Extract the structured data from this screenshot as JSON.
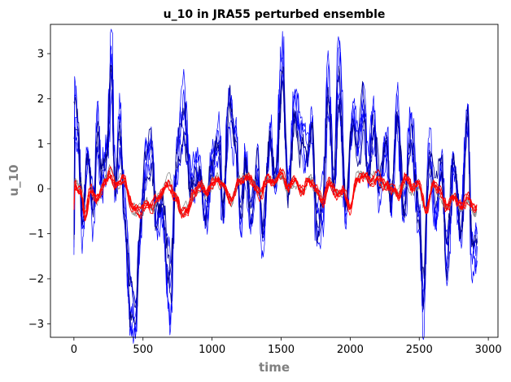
{
  "chart_data": {
    "type": "line",
    "title": "u_10 in JRA55 perturbed ensemble",
    "xlabel": "time",
    "ylabel": "u_10",
    "xlim": [
      -170,
      3070
    ],
    "ylim": [
      -3.3,
      3.65
    ],
    "xticks": [
      0,
      500,
      1000,
      1500,
      2000,
      2500,
      3000
    ],
    "yticks": [
      3,
      2,
      1,
      0,
      -1,
      -2,
      -3
    ],
    "grid": false,
    "n_points": 2920,
    "series_groups": [
      {
        "group": "blue-ensemble",
        "color": "#0000ff",
        "members": 5,
        "anchors": [
          [
            0,
            1.9
          ],
          [
            30,
            1.3
          ],
          [
            60,
            -0.8
          ],
          [
            100,
            0.6
          ],
          [
            140,
            -0.4
          ],
          [
            170,
            1.5
          ],
          [
            200,
            0.3
          ],
          [
            240,
            1.0
          ],
          [
            270,
            3.1
          ],
          [
            300,
            0.0
          ],
          [
            330,
            1.4
          ],
          [
            370,
            -0.5
          ],
          [
            410,
            -2.5
          ],
          [
            450,
            -2.8
          ],
          [
            480,
            -1.0
          ],
          [
            520,
            0.5
          ],
          [
            560,
            0.9
          ],
          [
            600,
            -0.9
          ],
          [
            640,
            -0.4
          ],
          [
            700,
            -2.5
          ],
          [
            740,
            0.5
          ],
          [
            800,
            1.7
          ],
          [
            840,
            0.2
          ],
          [
            900,
            0.5
          ],
          [
            960,
            -0.6
          ],
          [
            1000,
            0.6
          ],
          [
            1050,
            1.3
          ],
          [
            1080,
            -0.6
          ],
          [
            1120,
            2.0
          ],
          [
            1170,
            1.0
          ],
          [
            1210,
            -0.6
          ],
          [
            1240,
            0.8
          ],
          [
            1280,
            -0.6
          ],
          [
            1330,
            0.6
          ],
          [
            1370,
            -1.2
          ],
          [
            1420,
            1.2
          ],
          [
            1460,
            0.1
          ],
          [
            1510,
            2.7
          ],
          [
            1550,
            0.0
          ],
          [
            1600,
            2.0
          ],
          [
            1640,
            1.2
          ],
          [
            1690,
            0.7
          ],
          [
            1720,
            1.5
          ],
          [
            1760,
            -0.8
          ],
          [
            1800,
            -0.5
          ],
          [
            1840,
            2.2
          ],
          [
            1880,
            0.0
          ],
          [
            1920,
            2.6
          ],
          [
            1970,
            -0.4
          ],
          [
            2020,
            1.5
          ],
          [
            2060,
            1.0
          ],
          [
            2100,
            1.9
          ],
          [
            2130,
            0.5
          ],
          [
            2170,
            1.6
          ],
          [
            2210,
            0.0
          ],
          [
            2260,
            1.2
          ],
          [
            2300,
            -0.3
          ],
          [
            2340,
            1.7
          ],
          [
            2390,
            -0.4
          ],
          [
            2440,
            1.4
          ],
          [
            2500,
            -0.6
          ],
          [
            2530,
            -2.5
          ],
          [
            2570,
            0.8
          ],
          [
            2620,
            -0.6
          ],
          [
            2660,
            0.5
          ],
          [
            2700,
            -1.6
          ],
          [
            2750,
            0.6
          ],
          [
            2800,
            -1.0
          ],
          [
            2850,
            1.6
          ],
          [
            2880,
            -1.5
          ],
          [
            2920,
            -1.1
          ]
        ]
      },
      {
        "group": "navy-ensemble",
        "color": "#00008b",
        "members": 2
      },
      {
        "group": "gray-ensemble",
        "color": "#808080",
        "members": 3,
        "anchors": [
          [
            0,
            0.1
          ],
          [
            50,
            0.0
          ],
          [
            80,
            -0.6
          ],
          [
            120,
            0.0
          ],
          [
            170,
            -0.2
          ],
          [
            230,
            0.2
          ],
          [
            260,
            0.35
          ],
          [
            300,
            0.1
          ],
          [
            360,
            0.2
          ],
          [
            420,
            -0.4
          ],
          [
            480,
            -0.5
          ],
          [
            530,
            -0.3
          ],
          [
            560,
            -0.4
          ],
          [
            620,
            -0.15
          ],
          [
            680,
            0.15
          ],
          [
            740,
            -0.2
          ],
          [
            780,
            -0.55
          ],
          [
            820,
            -0.5
          ],
          [
            870,
            -0.1
          ],
          [
            920,
            0.1
          ],
          [
            960,
            -0.1
          ],
          [
            1000,
            0.1
          ],
          [
            1040,
            0.2
          ],
          [
            1080,
            0.1
          ],
          [
            1140,
            -0.3
          ],
          [
            1200,
            0.2
          ],
          [
            1250,
            0.25
          ],
          [
            1300,
            0.1
          ],
          [
            1350,
            -0.1
          ],
          [
            1400,
            0.2
          ],
          [
            1450,
            0.15
          ],
          [
            1500,
            0.3
          ],
          [
            1550,
            0.0
          ],
          [
            1600,
            0.15
          ],
          [
            1650,
            -0.1
          ],
          [
            1700,
            0.25
          ],
          [
            1750,
            0.0
          ],
          [
            1800,
            -0.3
          ],
          [
            1850,
            0.15
          ],
          [
            1900,
            -0.1
          ],
          [
            1950,
            0.0
          ],
          [
            2000,
            -0.4
          ],
          [
            2050,
            0.2
          ],
          [
            2100,
            0.25
          ],
          [
            2150,
            0.2
          ],
          [
            2200,
            0.3
          ],
          [
            2250,
            0.1
          ],
          [
            2300,
            0.0
          ],
          [
            2350,
            -0.15
          ],
          [
            2400,
            0.25
          ],
          [
            2450,
            0.0
          ],
          [
            2500,
            0.1
          ],
          [
            2550,
            -0.5
          ],
          [
            2600,
            0.1
          ],
          [
            2650,
            -0.1
          ],
          [
            2700,
            -0.4
          ],
          [
            2750,
            -0.2
          ],
          [
            2800,
            -0.4
          ],
          [
            2850,
            -0.25
          ],
          [
            2900,
            -0.5
          ],
          [
            2920,
            -0.4
          ]
        ]
      },
      {
        "group": "red-ensemble",
        "color": "#ff0000",
        "members": 5
      }
    ]
  }
}
